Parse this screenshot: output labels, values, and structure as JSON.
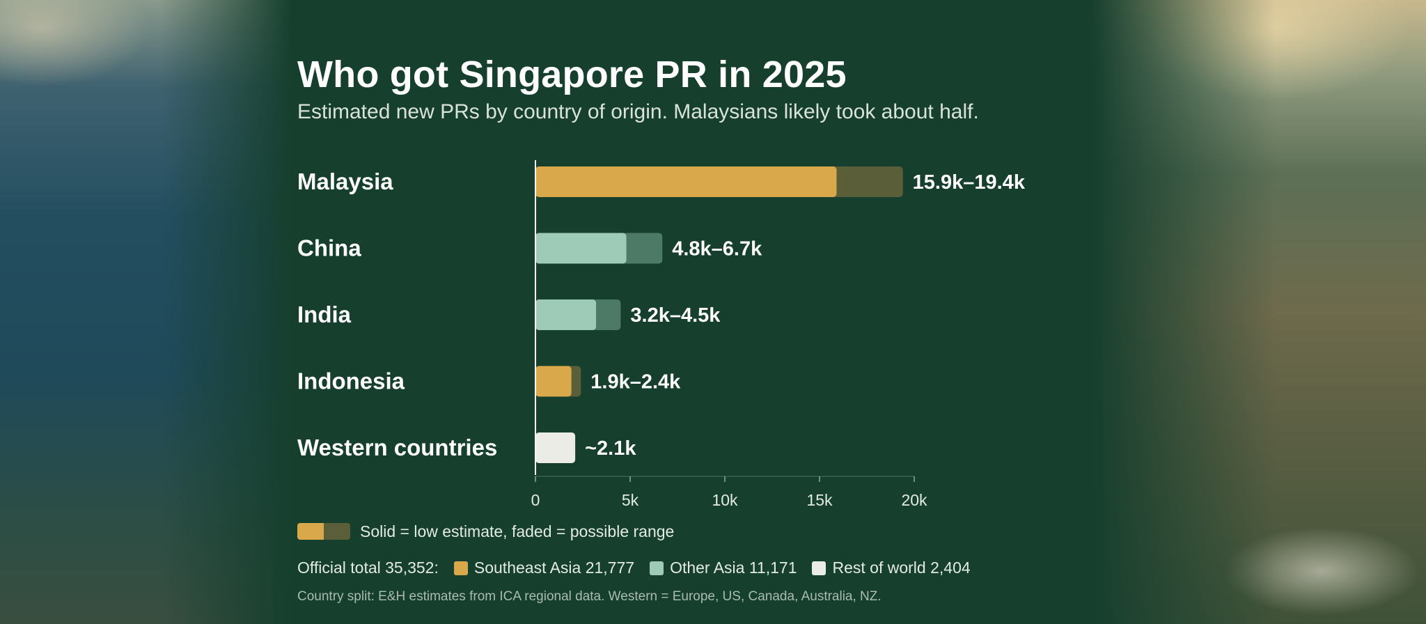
{
  "title": "Who got Singapore PR in 2025",
  "subtitle": "Estimated new PRs by country of origin. Malaysians likely took about half.",
  "chart_data": {
    "type": "bar",
    "orientation": "horizontal",
    "categories": [
      "Malaysia",
      "China",
      "India",
      "Indonesia",
      "Western countries"
    ],
    "series": [
      {
        "name": "low estimate",
        "values": [
          15900,
          4800,
          3200,
          1900,
          2100
        ]
      },
      {
        "name": "high estimate",
        "values": [
          19400,
          6700,
          4500,
          2400,
          2100
        ]
      }
    ],
    "value_labels": [
      "15.9k–19.4k",
      "4.8k–6.7k",
      "3.2k–4.5k",
      "1.9k–2.4k",
      "~2.1k"
    ],
    "region_of_category": [
      "Southeast Asia",
      "Other Asia",
      "Other Asia",
      "Southeast Asia",
      "Rest of world"
    ],
    "x_ticks": [
      {
        "value": 0,
        "label": "0"
      },
      {
        "value": 5000,
        "label": "5k"
      },
      {
        "value": 10000,
        "label": "10k"
      },
      {
        "value": 15000,
        "label": "15k"
      },
      {
        "value": 20000,
        "label": "20k"
      }
    ],
    "xlim": [
      0,
      20000
    ],
    "xlabel": "",
    "ylabel": "",
    "grid": false,
    "colors": {
      "Southeast Asia": {
        "solid": "#d9a84a",
        "faded": "#5a5f3a"
      },
      "Other Asia": {
        "solid": "#9ecbb8",
        "faded": "#4c7a66"
      },
      "Rest of world": {
        "solid": "#ececE6",
        "faded": "#6f8377"
      }
    }
  },
  "legend": {
    "key_text": "Solid = low estimate, faded = possible range"
  },
  "totals": {
    "label": "Official total 35,352:",
    "items": [
      {
        "label": "Southeast Asia 21,777",
        "color": "#d9a84a"
      },
      {
        "label": "Other Asia 11,171",
        "color": "#9ecbb8"
      },
      {
        "label": "Rest of world 2,404",
        "color": "#ecece6"
      }
    ]
  },
  "source": "Country split: E&H estimates from ICA regional data. Western = Europe, US, Canada, Australia, NZ."
}
